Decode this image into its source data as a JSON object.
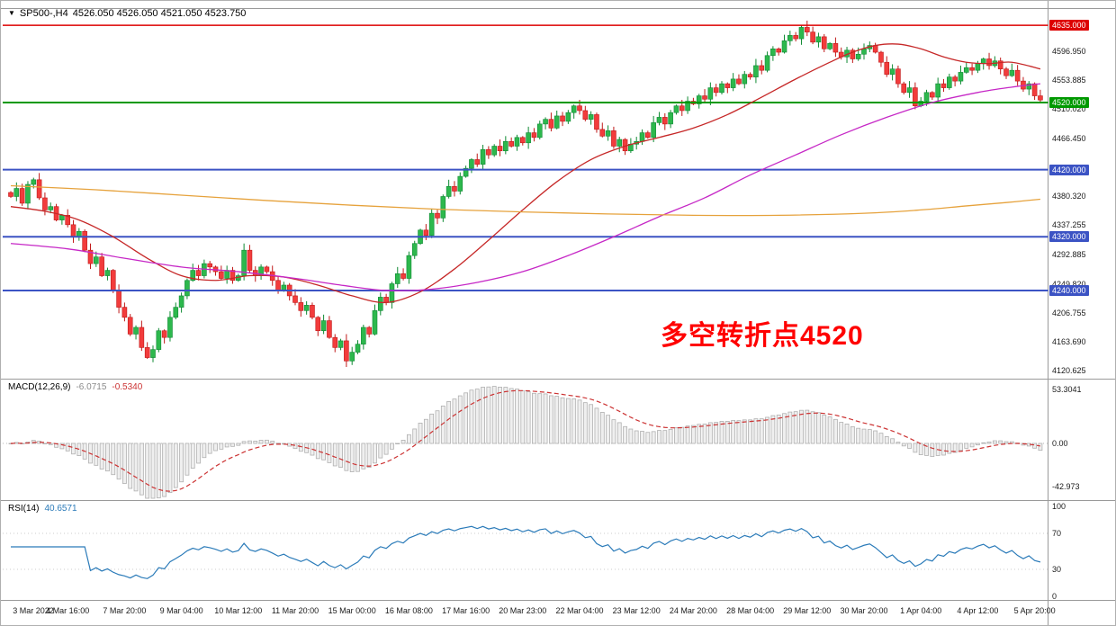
{
  "title_bar": {
    "dropdown_icon": "▼",
    "symbol_period": "SP500-,H4",
    "ohlc": "4526.050 4526.050 4521.050 4523.750"
  },
  "annotation": {
    "text": "多空转折点4520",
    "color": "#ff0000"
  },
  "macd_panel": {
    "title": "MACD(12,26,9)",
    "main_value": "-6.0715",
    "signal_value": "-0.5340"
  },
  "rsi_panel": {
    "title": "RSI(14)",
    "value": "40.6571"
  },
  "chart_data": {
    "type": "candlestick",
    "symbol": "SP500-",
    "timeframe": "H4",
    "title": "SP500-,H4 4526.050 4526.050 4521.050 4523.750",
    "current_ohlc": {
      "open": 4526.05,
      "high": 4526.05,
      "low": 4521.05,
      "close": 4523.75
    },
    "x_labels": [
      "3 Mar 2022",
      "4 Mar 16:00",
      "7 Mar 20:00",
      "9 Mar 04:00",
      "10 Mar 12:00",
      "11 Mar 20:00",
      "15 Mar 00:00",
      "16 Mar 08:00",
      "17 Mar 16:00",
      "20 Mar 23:00",
      "22 Mar 04:00",
      "23 Mar 12:00",
      "24 Mar 20:00",
      "28 Mar 04:00",
      "29 Mar 12:00",
      "30 Mar 20:00",
      "1 Apr 04:00",
      "4 Apr 12:00",
      "5 Apr 20:00"
    ],
    "candles_per_x_label": 10,
    "y_axis": {
      "min": 4120.625,
      "max": 4635.0,
      "ticks": [
        "4596.950",
        "4553.885",
        "4510.020",
        "4466.450",
        "4380.320",
        "4337.255",
        "4292.885",
        "4249.820",
        "4206.755",
        "4163.690",
        "4120.625"
      ]
    },
    "hlines": [
      {
        "price": 4635.0,
        "label": "4635.000",
        "color": "#dd0000",
        "width": 1.5
      },
      {
        "price": 4520.0,
        "label": "4520.000",
        "color": "#009900",
        "width": 2
      },
      {
        "price": 4420.0,
        "label": "4420.000",
        "color": "#3b53c4",
        "width": 2
      },
      {
        "price": 4320.0,
        "label": "4320.000",
        "color": "#3b53c4",
        "width": 2
      },
      {
        "price": 4240.0,
        "label": "4240.000",
        "color": "#3b53c4",
        "width": 2
      }
    ],
    "candles": {
      "up_color": "#2db84d",
      "up_border": "#0f8a33",
      "down_color": "#f23c3c",
      "down_border": "#c01818",
      "first_open": 4386,
      "closes": [
        4380,
        4392,
        4370,
        4398,
        4405,
        4378,
        4360,
        4365,
        4345,
        4352,
        4338,
        4320,
        4328,
        4300,
        4280,
        4290,
        4262,
        4270,
        4240,
        4215,
        4200,
        4175,
        4185,
        4155,
        4140,
        4152,
        4180,
        4170,
        4200,
        4215,
        4232,
        4255,
        4270,
        4262,
        4280,
        4275,
        4268,
        4258,
        4270,
        4255,
        4262,
        4300,
        4270,
        4262,
        4275,
        4268,
        4255,
        4240,
        4248,
        4232,
        4222,
        4210,
        4218,
        4200,
        4180,
        4195,
        4170,
        4155,
        4165,
        4135,
        4148,
        4160,
        4185,
        4175,
        4210,
        4230,
        4222,
        4250,
        4265,
        4258,
        4292,
        4310,
        4330,
        4322,
        4355,
        4348,
        4380,
        4395,
        4388,
        4410,
        4422,
        4435,
        4428,
        4450,
        4442,
        4455,
        4448,
        4462,
        4455,
        4468,
        4460,
        4475,
        4468,
        4488,
        4495,
        4482,
        4500,
        4492,
        4505,
        4515,
        4508,
        4495,
        4502,
        4480,
        4470,
        4478,
        4455,
        4465,
        4448,
        4458,
        4462,
        4475,
        4468,
        4490,
        4498,
        4488,
        4505,
        4515,
        4508,
        4522,
        4518,
        4530,
        4525,
        4542,
        4535,
        4548,
        4542,
        4555,
        4548,
        4562,
        4558,
        4575,
        4568,
        4590,
        4600,
        4595,
        4612,
        4620,
        4615,
        4632,
        4625,
        4610,
        4618,
        4600,
        4608,
        4595,
        4588,
        4598,
        4585,
        4592,
        4600,
        4605,
        4595,
        4580,
        4562,
        4570,
        4548,
        4535,
        4542,
        4515,
        4522,
        4535,
        4528,
        4548,
        4542,
        4558,
        4552,
        4565,
        4572,
        4568,
        4578,
        4585,
        4575,
        4582,
        4570,
        4560,
        4568,
        4552,
        4540,
        4548,
        4530,
        4523.75
      ]
    },
    "moving_averages": [
      {
        "name": "ma-red",
        "color": "#c62828",
        "points": [
          [
            0,
            4365
          ],
          [
            6,
            4358
          ],
          [
            12,
            4345
          ],
          [
            18,
            4320
          ],
          [
            24,
            4288
          ],
          [
            30,
            4262
          ],
          [
            36,
            4255
          ],
          [
            42,
            4262
          ],
          [
            48,
            4260
          ],
          [
            54,
            4248
          ],
          [
            60,
            4232
          ],
          [
            66,
            4222
          ],
          [
            72,
            4238
          ],
          [
            78,
            4272
          ],
          [
            84,
            4315
          ],
          [
            90,
            4360
          ],
          [
            96,
            4402
          ],
          [
            102,
            4435
          ],
          [
            108,
            4455
          ],
          [
            114,
            4468
          ],
          [
            120,
            4482
          ],
          [
            126,
            4502
          ],
          [
            132,
            4528
          ],
          [
            138,
            4555
          ],
          [
            144,
            4580
          ],
          [
            148,
            4595
          ],
          [
            152,
            4605
          ],
          [
            156,
            4607
          ],
          [
            160,
            4600
          ],
          [
            164,
            4588
          ],
          [
            168,
            4580
          ],
          [
            172,
            4578
          ],
          [
            176,
            4580
          ],
          [
            181,
            4570
          ]
        ]
      },
      {
        "name": "ma-magenta",
        "color": "#c628c6",
        "points": [
          [
            0,
            4310
          ],
          [
            10,
            4302
          ],
          [
            20,
            4288
          ],
          [
            30,
            4275
          ],
          [
            40,
            4268
          ],
          [
            50,
            4258
          ],
          [
            58,
            4248
          ],
          [
            66,
            4240
          ],
          [
            74,
            4242
          ],
          [
            82,
            4252
          ],
          [
            90,
            4268
          ],
          [
            98,
            4292
          ],
          [
            106,
            4320
          ],
          [
            114,
            4350
          ],
          [
            122,
            4378
          ],
          [
            130,
            4412
          ],
          [
            138,
            4442
          ],
          [
            146,
            4472
          ],
          [
            154,
            4498
          ],
          [
            162,
            4520
          ],
          [
            170,
            4535
          ],
          [
            176,
            4543
          ],
          [
            181,
            4548
          ]
        ]
      },
      {
        "name": "ma-orange",
        "color": "#e6a23c",
        "points": [
          [
            0,
            4396
          ],
          [
            15,
            4390
          ],
          [
            30,
            4382
          ],
          [
            45,
            4374
          ],
          [
            60,
            4367
          ],
          [
            75,
            4361
          ],
          [
            90,
            4357
          ],
          [
            105,
            4354
          ],
          [
            120,
            4352
          ],
          [
            135,
            4352
          ],
          [
            150,
            4355
          ],
          [
            160,
            4360
          ],
          [
            168,
            4366
          ],
          [
            175,
            4371
          ],
          [
            181,
            4376
          ]
        ]
      }
    ],
    "macd": {
      "fast": 12,
      "slow": 26,
      "signal": 9,
      "current_main": -6.0715,
      "current_signal": -0.534,
      "axis_ticks": [
        "53.3041",
        "0.00",
        "-42.973"
      ],
      "axis_max": 53.3041,
      "axis_min": -42.973,
      "hist_fill": "#efefef",
      "hist_border": "#b0b0b0",
      "signal_color": "#cc3333"
    },
    "rsi": {
      "period": 14,
      "current": 40.6571,
      "axis_ticks": [
        "100",
        "70",
        "30",
        "0"
      ],
      "levels": [
        70,
        30
      ],
      "line_color": "#2b7bb9"
    }
  }
}
